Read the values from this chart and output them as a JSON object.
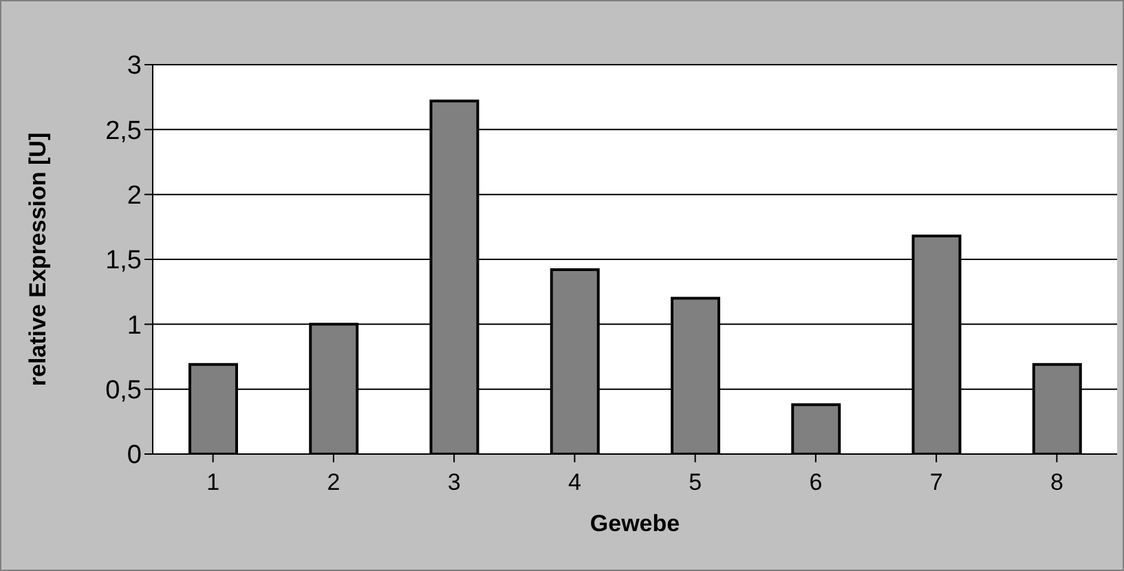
{
  "chart_data": {
    "type": "bar",
    "xlabel": "Gewebe",
    "ylabel": "relative Expression [U]",
    "categories": [
      "1",
      "2",
      "3",
      "4",
      "5",
      "6",
      "7",
      "8"
    ],
    "values": [
      0.69,
      1.0,
      2.72,
      1.42,
      1.2,
      0.38,
      1.68,
      0.69
    ],
    "color": "#808080",
    "ylim": [
      0,
      3
    ],
    "yticks": [
      {
        "value": 0,
        "label": "0"
      },
      {
        "value": 0.5,
        "label": "0,5"
      },
      {
        "value": 1,
        "label": "1"
      },
      {
        "value": 1.5,
        "label": "1,5"
      },
      {
        "value": 2,
        "label": "2"
      },
      {
        "value": 2.5,
        "label": "2,5"
      },
      {
        "value": 3,
        "label": "3"
      }
    ],
    "grid": "y"
  }
}
